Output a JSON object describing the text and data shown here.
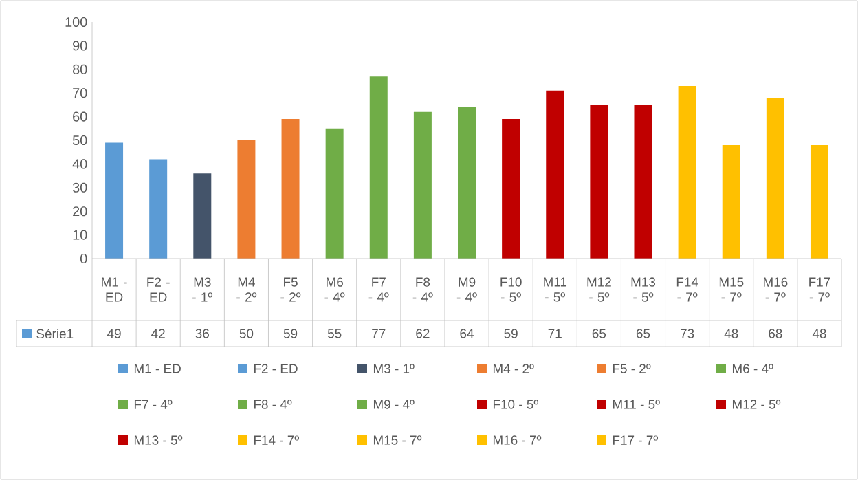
{
  "chart_data": {
    "type": "bar",
    "categories": [
      "M1 - ED",
      "F2 - ED",
      "M3 - 1º",
      "M4 - 2º",
      "F5 - 2º",
      "M6 - 4º",
      "F7 - 4º",
      "F8 - 4º",
      "M9 - 4º",
      "F10 - 5º",
      "M11 - 5º",
      "M12 - 5º",
      "M13 - 5º",
      "F14 - 7º",
      "M15 - 7º",
      "M16 - 7º",
      "F17 - 7º"
    ],
    "series": [
      {
        "name": "Série1",
        "color": "#5b9bd5",
        "values": [
          49,
          42,
          36,
          50,
          59,
          55,
          77,
          62,
          64,
          59,
          71,
          65,
          65,
          73,
          48,
          68,
          48
        ],
        "colors": [
          "#5b9bd5",
          "#5b9bd5",
          "#44546a",
          "#ed7d31",
          "#ed7d31",
          "#70ad47",
          "#70ad47",
          "#70ad47",
          "#70ad47",
          "#c00000",
          "#c00000",
          "#c00000",
          "#c00000",
          "#ffc000",
          "#ffc000",
          "#ffc000",
          "#ffc000"
        ]
      }
    ],
    "ylim": [
      0,
      100
    ],
    "yticks": [
      0,
      10,
      20,
      30,
      40,
      50,
      60,
      70,
      80,
      90,
      100
    ],
    "data_labels": true,
    "legend": "bottom"
  }
}
